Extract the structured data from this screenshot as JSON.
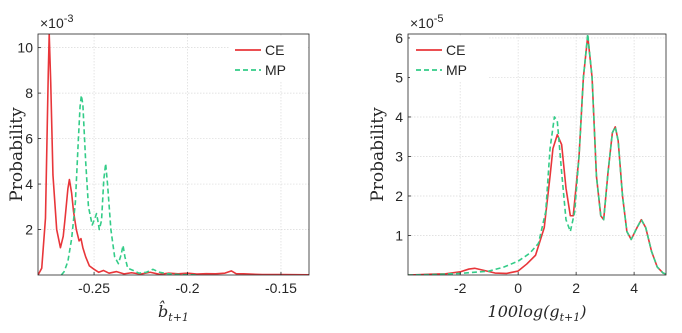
{
  "chart_data": [
    {
      "type": "line",
      "exponent_label": "×10",
      "exponent_power": "-3",
      "ylabel": "Probability",
      "xlabel_main": "b̂",
      "xlabel_sub": "t+1",
      "xlim": [
        -0.28,
        -0.135
      ],
      "ylim": [
        0,
        0.0106
      ],
      "xticks": [
        -0.25,
        -0.2,
        -0.15
      ],
      "xtick_labels": [
        "-0.25",
        "-0.2",
        "-0.15"
      ],
      "yticks": [
        0.002,
        0.004,
        0.006,
        0.008,
        0.01
      ],
      "ytick_labels": [
        "2",
        "4",
        "6",
        "8",
        "10"
      ],
      "grid": true,
      "legend_position": "top-right",
      "series": [
        {
          "name": "CE",
          "color": "#e8363a",
          "style": "solid",
          "points": [
            [
              -0.28,
              0.0
            ],
            [
              -0.278,
              0.0003
            ],
            [
              -0.276,
              0.0025
            ],
            [
              -0.2745,
              0.0089
            ],
            [
              -0.274,
              0.0106
            ],
            [
              -0.2732,
              0.0085
            ],
            [
              -0.272,
              0.0044
            ],
            [
              -0.27,
              0.002
            ],
            [
              -0.268,
              0.0012
            ],
            [
              -0.2665,
              0.0017
            ],
            [
              -0.2655,
              0.0025
            ],
            [
              -0.264,
              0.0038
            ],
            [
              -0.2632,
              0.0042
            ],
            [
              -0.262,
              0.0036
            ],
            [
              -0.261,
              0.0028
            ],
            [
              -0.2595,
              0.002
            ],
            [
              -0.258,
              0.0015
            ],
            [
              -0.257,
              0.0016
            ],
            [
              -0.256,
              0.0012
            ],
            [
              -0.2545,
              0.0008
            ],
            [
              -0.2525,
              0.0004
            ],
            [
              -0.25,
              0.00025
            ],
            [
              -0.2475,
              0.00012
            ],
            [
              -0.245,
              0.0002
            ],
            [
              -0.242,
              8e-05
            ],
            [
              -0.238,
              0.00015
            ],
            [
              -0.234,
              5e-05
            ],
            [
              -0.23,
              0.0001
            ],
            [
              -0.225,
              4e-05
            ],
            [
              -0.22,
              0.00012
            ],
            [
              -0.215,
              3e-05
            ],
            [
              -0.21,
              8e-05
            ],
            [
              -0.205,
              5e-05
            ],
            [
              -0.2,
              8e-05
            ],
            [
              -0.195,
              4e-05
            ],
            [
              -0.19,
              6e-05
            ],
            [
              -0.185,
              5e-05
            ],
            [
              -0.18,
              8e-05
            ],
            [
              -0.1765,
              0.00018
            ],
            [
              -0.174,
              6e-05
            ],
            [
              -0.17,
              5e-05
            ],
            [
              -0.16,
              2e-05
            ],
            [
              -0.15,
              2e-05
            ],
            [
              -0.135,
              1e-05
            ]
          ]
        },
        {
          "name": "MP",
          "color": "#33cc88",
          "style": "dashed",
          "points": [
            [
              -0.2675,
              0.0
            ],
            [
              -0.266,
              0.00015
            ],
            [
              -0.264,
              0.0006
            ],
            [
              -0.262,
              0.0016
            ],
            [
              -0.26,
              0.0032
            ],
            [
              -0.2585,
              0.0058
            ],
            [
              -0.2575,
              0.0074
            ],
            [
              -0.2568,
              0.0079
            ],
            [
              -0.256,
              0.0075
            ],
            [
              -0.2545,
              0.005
            ],
            [
              -0.253,
              0.003
            ],
            [
              -0.251,
              0.0022
            ],
            [
              -0.2495,
              0.0025
            ],
            [
              -0.2487,
              0.0027
            ],
            [
              -0.248,
              0.0024
            ],
            [
              -0.2472,
              0.002
            ],
            [
              -0.246,
              0.0024
            ],
            [
              -0.2448,
              0.0042
            ],
            [
              -0.2438,
              0.0049
            ],
            [
              -0.2428,
              0.004
            ],
            [
              -0.241,
              0.002
            ],
            [
              -0.239,
              0.0008
            ],
            [
              -0.237,
              0.0005
            ],
            [
              -0.2355,
              0.0009
            ],
            [
              -0.2345,
              0.0013
            ],
            [
              -0.2335,
              0.0008
            ],
            [
              -0.232,
              0.0003
            ],
            [
              -0.229,
              0.0002
            ],
            [
              -0.226,
              8e-05
            ],
            [
              -0.222,
              0.00012
            ],
            [
              -0.2185,
              0.00025
            ],
            [
              -0.215,
              0.00012
            ],
            [
              -0.211,
              6e-05
            ],
            [
              -0.205,
              2e-05
            ],
            [
              -0.195,
              0.0
            ]
          ]
        }
      ]
    },
    {
      "type": "line",
      "exponent_label": "×10",
      "exponent_power": "-5",
      "ylabel": "Probability",
      "xlabel_main": "100log(g",
      "xlabel_sub": "t+1",
      "xlabel_end": ")",
      "xlim": [
        -3.8,
        5.1
      ],
      "ylim": [
        0,
        6.1e-05
      ],
      "xticks": [
        -2,
        0,
        2,
        4
      ],
      "xtick_labels": [
        "-2",
        "0",
        "2",
        "4"
      ],
      "yticks": [
        1e-05,
        2e-05,
        3e-05,
        4e-05,
        5e-05,
        6e-05
      ],
      "ytick_labels": [
        "1",
        "2",
        "3",
        "4",
        "5",
        "6"
      ],
      "grid": true,
      "legend_position": "top-left",
      "series": [
        {
          "name": "CE",
          "color": "#e8363a",
          "style": "solid",
          "points": [
            [
              -3.8,
              0.0
            ],
            [
              -3.0,
              2e-07
            ],
            [
              -2.5,
              3e-07
            ],
            [
              -2.0,
              8e-07
            ],
            [
              -1.7,
              1.5e-06
            ],
            [
              -1.5,
              1.7e-06
            ],
            [
              -1.2,
              1.2e-06
            ],
            [
              -0.8,
              5e-07
            ],
            [
              -0.4,
              4e-07
            ],
            [
              0.0,
              1e-06
            ],
            [
              0.3,
              2.8e-06
            ],
            [
              0.6,
              5e-06
            ],
            [
              0.9,
              1.2e-05
            ],
            [
              1.1,
              2.5e-05
            ],
            [
              1.2,
              3.2e-05
            ],
            [
              1.35,
              3.55e-05
            ],
            [
              1.5,
              3.3e-05
            ],
            [
              1.65,
              2.2e-05
            ],
            [
              1.8,
              1.5e-05
            ],
            [
              1.9,
              1.5e-05
            ],
            [
              2.1,
              3e-05
            ],
            [
              2.25,
              5e-05
            ],
            [
              2.4,
              6.05e-05
            ],
            [
              2.55,
              5e-05
            ],
            [
              2.7,
              2.5e-05
            ],
            [
              2.85,
              1.5e-05
            ],
            [
              2.95,
              1.4e-05
            ],
            [
              3.1,
              2.6e-05
            ],
            [
              3.25,
              3.6e-05
            ],
            [
              3.35,
              3.75e-05
            ],
            [
              3.45,
              3.4e-05
            ],
            [
              3.6,
              2e-05
            ],
            [
              3.75,
              1.1e-05
            ],
            [
              3.9,
              9e-06
            ],
            [
              4.1,
              1.2e-05
            ],
            [
              4.25,
              1.4e-05
            ],
            [
              4.4,
              1.2e-05
            ],
            [
              4.6,
              6e-06
            ],
            [
              4.8,
              2e-06
            ],
            [
              5.0,
              5e-07
            ],
            [
              5.1,
              2e-07
            ]
          ]
        },
        {
          "name": "MP",
          "color": "#33cc88",
          "style": "dashed",
          "points": [
            [
              -3.8,
              0.0
            ],
            [
              -3.0,
              1e-07
            ],
            [
              -2.0,
              4e-07
            ],
            [
              -1.0,
              1e-06
            ],
            [
              -0.5,
              2e-06
            ],
            [
              0.0,
              3.5e-06
            ],
            [
              0.4,
              5.5e-06
            ],
            [
              0.7,
              8e-06
            ],
            [
              0.95,
              1.6e-05
            ],
            [
              1.1,
              3.2e-05
            ],
            [
              1.25,
              4e-05
            ],
            [
              1.35,
              3.9e-05
            ],
            [
              1.5,
              2.6e-05
            ],
            [
              1.65,
              1.4e-05
            ],
            [
              1.8,
              1.1e-05
            ],
            [
              1.95,
              1.6e-05
            ],
            [
              2.1,
              3e-05
            ],
            [
              2.25,
              5e-05
            ],
            [
              2.4,
              6.1e-05
            ],
            [
              2.55,
              5e-05
            ],
            [
              2.7,
              2.5e-05
            ],
            [
              2.85,
              1.5e-05
            ],
            [
              2.95,
              1.4e-05
            ],
            [
              3.1,
              2.6e-05
            ],
            [
              3.25,
              3.6e-05
            ],
            [
              3.35,
              3.75e-05
            ],
            [
              3.45,
              3.4e-05
            ],
            [
              3.6,
              2e-05
            ],
            [
              3.75,
              1.1e-05
            ],
            [
              3.9,
              9e-06
            ],
            [
              4.1,
              1.2e-05
            ],
            [
              4.25,
              1.4e-05
            ],
            [
              4.4,
              1.2e-05
            ],
            [
              4.6,
              6e-06
            ],
            [
              4.8,
              2e-06
            ],
            [
              5.0,
              5e-07
            ],
            [
              5.1,
              2e-07
            ]
          ]
        }
      ]
    }
  ]
}
